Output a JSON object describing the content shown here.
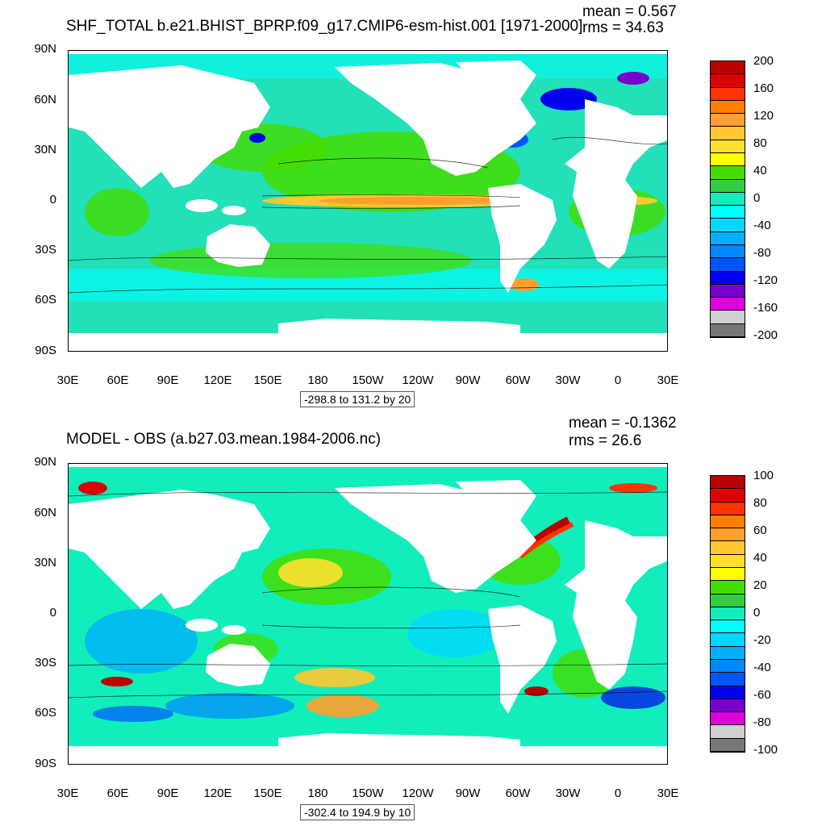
{
  "top": {
    "title": "SHF_TOTAL b.e21.BHIST_BPRP.f09_g17.CMIP6-esm-hist.001 [1971-2000]",
    "mean": "mean = 0.567",
    "rms": "rms = 34.63",
    "range_note": "-298.8 to 131.2 by 20",
    "colorbar_labels": [
      "200",
      "160",
      "120",
      "80",
      "40",
      "0",
      "-40",
      "-80",
      "-120",
      "-160",
      "-200"
    ],
    "colorbar_colors": [
      "#bb0000",
      "#dd0000",
      "#ff3300",
      "#ff7f00",
      "#ff9f30",
      "#ffc830",
      "#ffe030",
      "#ffff00",
      "#44dd00",
      "#33cc44",
      "#11eebb",
      "#00ffff",
      "#00d8ff",
      "#00b0ff",
      "#0088ff",
      "#0055ff",
      "#0000ee",
      "#7700cc",
      "#dd00dd",
      "#d0d0d0",
      "#777777"
    ]
  },
  "bottom": {
    "title": "MODEL - OBS (a.b27.03.mean.1984-2006.nc)",
    "mean": "mean = -0.1362",
    "rms": "rms = 26.6",
    "range_note": "-302.4 to 194.9 by 10",
    "colorbar_labels": [
      "100",
      "80",
      "60",
      "40",
      "20",
      "0",
      "-20",
      "-40",
      "-60",
      "-80",
      "-100"
    ],
    "colorbar_colors": [
      "#bb0000",
      "#dd0000",
      "#ff3300",
      "#ff7f00",
      "#ff9f30",
      "#ffc830",
      "#ffe030",
      "#ffff00",
      "#44dd00",
      "#33cc44",
      "#11eebb",
      "#00ffff",
      "#00d8ff",
      "#00b0ff",
      "#0088ff",
      "#0055ff",
      "#0000ee",
      "#7700cc",
      "#dd00dd",
      "#d0d0d0",
      "#777777"
    ]
  },
  "axes": {
    "lat_labels": [
      "90N",
      "60N",
      "30N",
      "0",
      "30S",
      "60S",
      "90S"
    ],
    "lon_labels": [
      "30E",
      "60E",
      "90E",
      "120E",
      "150E",
      "180",
      "150W",
      "120W",
      "90W",
      "60W",
      "30W",
      "0",
      "30E"
    ]
  },
  "colors": {
    "ocean_base": "#22e0b8",
    "ocean_green": "#44dd00",
    "land": "#ffffff"
  }
}
